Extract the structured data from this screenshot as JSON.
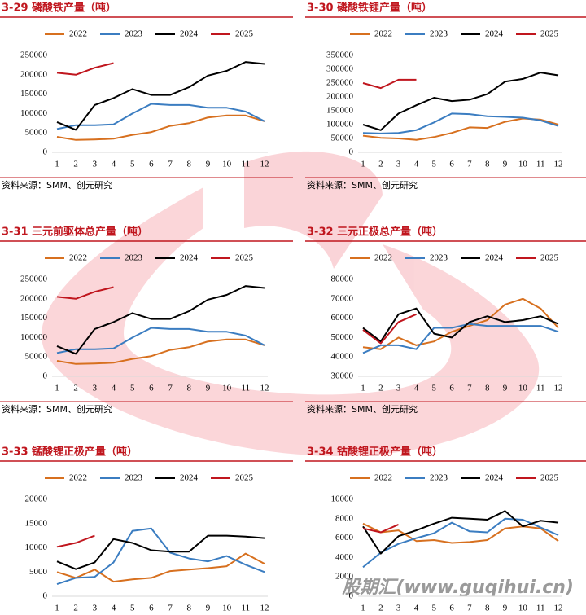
{
  "chart_data": [
    {
      "type": "line",
      "title": "3-29 磷酸铁产量（吨）",
      "source": "资料来源：SMM、创元研究",
      "categories": [
        "1",
        "2",
        "3",
        "4",
        "5",
        "6",
        "7",
        "8",
        "9",
        "10",
        "11",
        "12"
      ],
      "ylim": [
        0,
        250000
      ],
      "yticks": [
        0,
        50000,
        100000,
        150000,
        200000,
        250000
      ],
      "series": [
        {
          "name": "2022",
          "color": "#d7701f",
          "values": [
            40000,
            32000,
            33000,
            35000,
            45000,
            52000,
            68000,
            75000,
            90000,
            95000,
            95000,
            80000
          ]
        },
        {
          "name": "2023",
          "color": "#3b7dc1",
          "values": [
            60000,
            70000,
            70000,
            72000,
            100000,
            125000,
            122000,
            122000,
            115000,
            115000,
            105000,
            80000
          ]
        },
        {
          "name": "2024",
          "color": "#000000",
          "values": [
            78000,
            58000,
            122000,
            140000,
            163000,
            148000,
            148000,
            168000,
            198000,
            210000,
            233000,
            228000
          ]
        },
        {
          "name": "2025",
          "color": "#c0161e",
          "values": [
            205000,
            200000,
            218000,
            230000,
            null,
            null,
            null,
            null,
            null,
            null,
            null,
            null
          ]
        }
      ]
    },
    {
      "type": "line",
      "title": "3-30 磷酸铁锂产量（吨）",
      "source": "资料来源：SMM、创元研究",
      "categories": [
        "1",
        "2",
        "3",
        "4",
        "5",
        "6",
        "7",
        "8",
        "9",
        "10",
        "11",
        "12"
      ],
      "ylim": [
        0,
        350000
      ],
      "yticks": [
        0,
        50000,
        100000,
        150000,
        200000,
        250000,
        300000,
        350000
      ],
      "series": [
        {
          "name": "2022",
          "color": "#d7701f",
          "values": [
            60000,
            52000,
            50000,
            45000,
            55000,
            70000,
            90000,
            88000,
            110000,
            122000,
            118000,
            100000
          ]
        },
        {
          "name": "2023",
          "color": "#3b7dc1",
          "values": [
            70000,
            68000,
            70000,
            80000,
            108000,
            140000,
            138000,
            130000,
            128000,
            125000,
            115000,
            95000
          ]
        },
        {
          "name": "2024",
          "color": "#000000",
          "values": [
            100000,
            80000,
            140000,
            170000,
            197000,
            185000,
            190000,
            210000,
            255000,
            265000,
            288000,
            278000
          ]
        },
        {
          "name": "2025",
          "color": "#c0161e",
          "values": [
            250000,
            232000,
            262000,
            262000,
            null,
            null,
            null,
            null,
            null,
            null,
            null,
            null
          ]
        }
      ]
    },
    {
      "type": "line",
      "title": "3-31 三元前驱体总产量（吨）",
      "source": "资料来源：SMM、创元研究",
      "categories": [
        "1",
        "2",
        "3",
        "4",
        "5",
        "6",
        "7",
        "8",
        "9",
        "10",
        "11",
        "12"
      ],
      "ylim": [
        0,
        250000
      ],
      "yticks": [
        0,
        50000,
        100000,
        150000,
        200000,
        250000
      ],
      "series": [
        {
          "name": "2022",
          "color": "#d7701f",
          "values": [
            40000,
            32000,
            33000,
            35000,
            45000,
            52000,
            68000,
            75000,
            90000,
            95000,
            95000,
            80000
          ]
        },
        {
          "name": "2023",
          "color": "#3b7dc1",
          "values": [
            60000,
            70000,
            70000,
            72000,
            100000,
            125000,
            122000,
            122000,
            115000,
            115000,
            105000,
            80000
          ]
        },
        {
          "name": "2024",
          "color": "#000000",
          "values": [
            78000,
            58000,
            122000,
            140000,
            163000,
            148000,
            148000,
            168000,
            198000,
            210000,
            233000,
            228000
          ]
        },
        {
          "name": "2025",
          "color": "#c0161e",
          "values": [
            205000,
            200000,
            218000,
            230000,
            null,
            null,
            null,
            null,
            null,
            null,
            null,
            null
          ]
        }
      ]
    },
    {
      "type": "line",
      "title": "3-32 三元正极总产量（吨）",
      "source": "资料来源：SMM、创元研究",
      "categories": [
        "1",
        "2",
        "3",
        "4",
        "5",
        "6",
        "7",
        "8",
        "9",
        "10",
        "11",
        "12"
      ],
      "ylim": [
        30000,
        80000
      ],
      "yticks": [
        30000,
        40000,
        50000,
        60000,
        70000,
        80000
      ],
      "series": [
        {
          "name": "2022",
          "color": "#d7701f",
          "values": [
            45000,
            44000,
            50000,
            46000,
            48000,
            53000,
            56000,
            59000,
            67000,
            70000,
            65000,
            55000
          ]
        },
        {
          "name": "2023",
          "color": "#3b7dc1",
          "values": [
            42000,
            46000,
            46000,
            44000,
            55000,
            55000,
            57000,
            56000,
            56000,
            56000,
            56000,
            53000
          ]
        },
        {
          "name": "2024",
          "color": "#000000",
          "values": [
            55000,
            48000,
            62000,
            65000,
            52000,
            50000,
            58000,
            61000,
            58000,
            59000,
            61000,
            57000
          ]
        },
        {
          "name": "2025",
          "color": "#c0161e",
          "values": [
            54000,
            47000,
            58000,
            62000,
            null,
            null,
            null,
            null,
            null,
            null,
            null,
            null
          ]
        }
      ]
    },
    {
      "type": "line",
      "title": "3-33 锰酸锂正极产量（吨）",
      "categories": [
        "1",
        "2",
        "3",
        "4",
        "5",
        "6",
        "7",
        "8",
        "9",
        "10",
        "11",
        "12"
      ],
      "ylim": [
        0,
        20000
      ],
      "yticks": [
        0,
        5000,
        10000,
        15000,
        20000
      ],
      "series": [
        {
          "name": "2022",
          "color": "#d7701f",
          "values": [
            5000,
            3800,
            5500,
            3000,
            3500,
            3800,
            5200,
            5500,
            5800,
            6200,
            8800,
            6700
          ]
        },
        {
          "name": "2023",
          "color": "#3b7dc1",
          "values": [
            2500,
            3800,
            4000,
            7000,
            13500,
            14000,
            9000,
            7800,
            7200,
            8300,
            6500,
            5000
          ]
        },
        {
          "name": "2024",
          "color": "#000000",
          "values": [
            7200,
            5600,
            7000,
            11800,
            11000,
            9500,
            9200,
            9200,
            12500,
            12500,
            12300,
            12000
          ]
        },
        {
          "name": "2025",
          "color": "#c0161e",
          "values": [
            10200,
            11000,
            12500,
            null,
            null,
            null,
            null,
            null,
            null,
            null,
            null,
            null
          ]
        }
      ]
    },
    {
      "type": "line",
      "title": "3-34 钴酸锂正极产量（吨）",
      "categories": [
        "1",
        "2",
        "3",
        "4",
        "5",
        "6",
        "7",
        "8",
        "9",
        "10",
        "11",
        "12"
      ],
      "ylim": [
        0,
        10000
      ],
      "yticks": [
        0,
        2000,
        4000,
        6000,
        8000,
        10000
      ],
      "series": [
        {
          "name": "2022",
          "color": "#d7701f",
          "values": [
            7500,
            6600,
            6800,
            5700,
            5800,
            5500,
            5600,
            5800,
            7000,
            7200,
            7000,
            5700
          ]
        },
        {
          "name": "2023",
          "color": "#3b7dc1",
          "values": [
            3000,
            4500,
            5400,
            6000,
            6500,
            7600,
            6700,
            6600,
            8000,
            7900,
            7100,
            6300
          ]
        },
        {
          "name": "2024",
          "color": "#000000",
          "values": [
            7200,
            4400,
            6200,
            6800,
            7500,
            8100,
            8000,
            7900,
            8800,
            7200,
            7800,
            7600
          ]
        },
        {
          "name": "2025",
          "color": "#c0161e",
          "values": [
            7000,
            6600,
            7400,
            null,
            null,
            null,
            null,
            null,
            null,
            null,
            null,
            null
          ]
        }
      ]
    }
  ],
  "watermark": "股期汇(www.guqihui.cn)"
}
